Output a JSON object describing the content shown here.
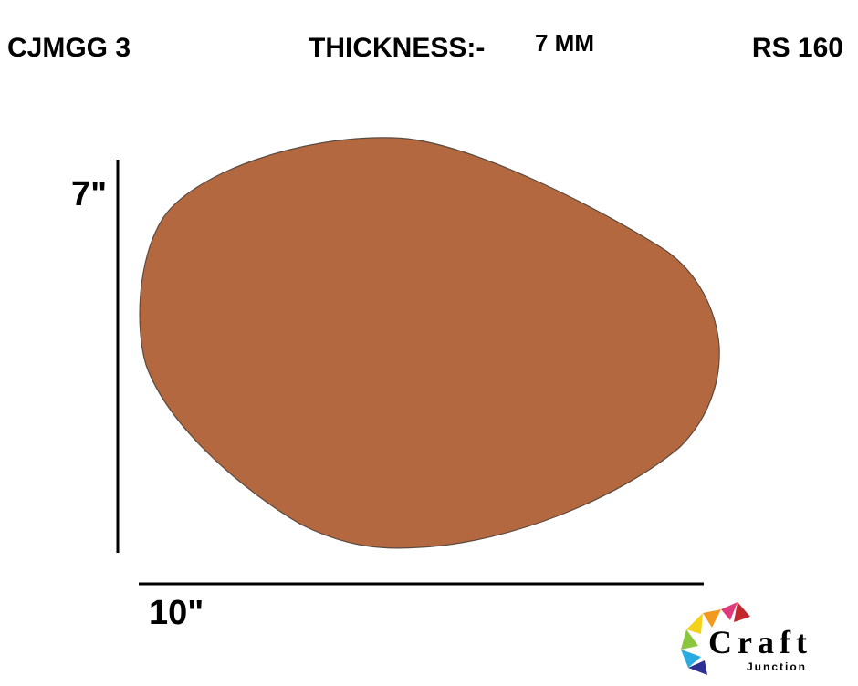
{
  "header": {
    "code": "CJMGG 3",
    "thickness_label": "THICKNESS:-",
    "thickness_value": "7 MM",
    "price": "RS 160"
  },
  "dimensions": {
    "height": "7\"",
    "width": "10\""
  },
  "logo": {
    "name": "Craft",
    "subname": "Junction"
  }
}
